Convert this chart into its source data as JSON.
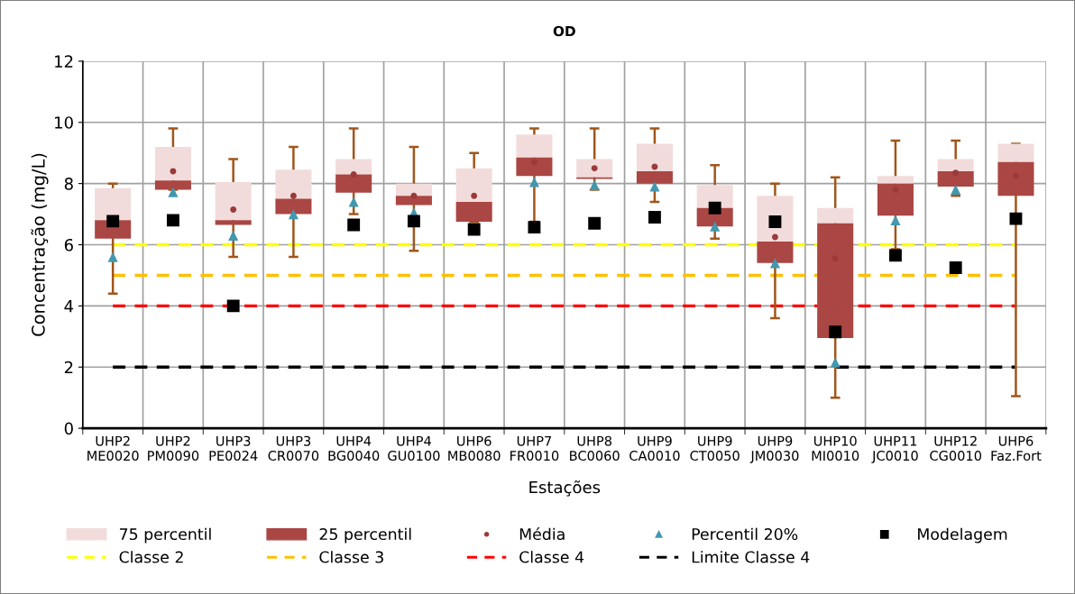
{
  "chart_data": {
    "type": "bar",
    "title": "OD",
    "xlabel": "Estações",
    "ylabel": "Concentração (mg/L)",
    "categories": [
      "UHP2\nME0020",
      "UHP2\nPM0090",
      "UHP3\nPE0024",
      "UHP3\nCR0070",
      "UHP4\nBG0040",
      "UHP4\nGU0100",
      "UHP6\nMB0080",
      "UHP7\nFR0010",
      "UHP8\nBC0060",
      "UHP9\nCA0010",
      "UHP9\nCT0050",
      "UHP9\nJM0030",
      "UHP10\nMI0010",
      "UHP11\nJC0010",
      "UHP12\nCG0010",
      "UHP6\nFaz.Fort"
    ],
    "series": [
      {
        "name": "75 percentil",
        "color": "#f2dcdb",
        "base": [
          6.8,
          8.1,
          6.8,
          7.5,
          8.3,
          7.6,
          7.4,
          8.85,
          8.2,
          8.4,
          7.2,
          6.1,
          6.7,
          8.0,
          8.4,
          8.7
        ],
        "values": [
          1.05,
          1.1,
          1.25,
          0.95,
          0.5,
          0.4,
          1.1,
          0.75,
          0.6,
          0.9,
          0.75,
          1.5,
          0.5,
          0.25,
          0.4,
          0.6
        ]
      },
      {
        "name": "25 percentil",
        "color": "#aa4643",
        "base": [
          6.2,
          7.8,
          6.65,
          7.0,
          7.7,
          7.3,
          6.75,
          8.25,
          8.15,
          8.0,
          6.6,
          5.4,
          2.95,
          6.95,
          7.9,
          7.6
        ],
        "values": [
          0.6,
          0.3,
          0.15,
          0.5,
          0.6,
          0.3,
          0.65,
          0.6,
          0.05,
          0.4,
          0.6,
          0.7,
          3.75,
          1.05,
          0.5,
          1.1
        ],
        "errors": [
          [
            4.4,
            8.0
          ],
          [
            7.8,
            9.8
          ],
          [
            5.6,
            8.8
          ],
          [
            5.6,
            9.2
          ],
          [
            7.0,
            9.8
          ],
          [
            5.8,
            9.2
          ],
          [
            6.75,
            9.0
          ],
          [
            6.75,
            9.8
          ],
          [
            7.8,
            9.8
          ],
          [
            7.4,
            9.8
          ],
          [
            6.2,
            8.6
          ],
          [
            3.6,
            8.0
          ],
          [
            1.0,
            8.2
          ],
          [
            5.85,
            9.4
          ],
          [
            7.6,
            9.4
          ],
          [
            1.05,
            9.3
          ]
        ]
      },
      {
        "name": "Média",
        "type": "scatter",
        "marker": "circle",
        "color": "#9b3a3a",
        "values": [
          null,
          8.4,
          7.15,
          7.6,
          8.3,
          7.6,
          7.6,
          8.7,
          8.5,
          8.55,
          null,
          6.25,
          5.55,
          7.8,
          8.35,
          8.25
        ]
      },
      {
        "name": "Percentil 20%",
        "type": "scatter",
        "marker": "triangle",
        "color": "#4198af",
        "values": [
          5.6,
          7.72,
          6.3,
          7.0,
          7.4,
          7.05,
          null,
          8.05,
          7.95,
          7.9,
          6.6,
          5.4,
          2.15,
          6.8,
          7.8,
          null
        ]
      },
      {
        "name": "Modelagem",
        "type": "scatter",
        "marker": "square",
        "color": "#000000",
        "values": [
          6.77,
          6.8,
          4.0,
          null,
          6.65,
          6.77,
          6.5,
          6.57,
          6.7,
          6.9,
          7.2,
          6.75,
          3.15,
          5.65,
          5.25,
          6.85
        ]
      }
    ],
    "ref_lines": [
      {
        "axis": "y",
        "value": 6,
        "label": "Classe 2",
        "color": "#ffff00",
        "line_style": "dashed"
      },
      {
        "axis": "y",
        "value": 5,
        "label": "Classe 3",
        "color": "#ffc000",
        "line_style": "dashed"
      },
      {
        "axis": "y",
        "value": 4,
        "label": "Classe 4",
        "color": "#ff0000",
        "line_style": "dashed"
      },
      {
        "axis": "y",
        "value": 2,
        "label": "Limite Classe 4",
        "color": "#000000",
        "line_style": "dashed"
      }
    ],
    "ylim": [
      0,
      12
    ],
    "yticks": [
      0,
      2,
      4,
      6,
      8,
      10,
      12
    ],
    "grid": true,
    "legend": "bottom"
  }
}
